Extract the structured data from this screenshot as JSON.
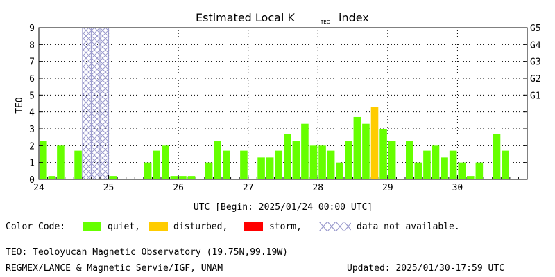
{
  "chart_data": {
    "type": "bar",
    "title": "Estimated Local K",
    "title_subscript": "TEO",
    "title_suffix": "index",
    "ylabel": "TEO",
    "xlabel": "UTC [Begin: 2025/01/24 00:00 UTC]",
    "ylim": [
      0,
      9
    ],
    "xlim": [
      24,
      31
    ],
    "x_ticks": [
      "24",
      "25",
      "26",
      "27",
      "28",
      "29",
      "30"
    ],
    "y_ticks": [
      "0",
      "1",
      "2",
      "3",
      "4",
      "5",
      "6",
      "7",
      "8",
      "9"
    ],
    "right_ticks": [
      {
        "label": "G1",
        "value": 5
      },
      {
        "label": "G2",
        "value": 6
      },
      {
        "label": "G3",
        "value": 7
      },
      {
        "label": "G4",
        "value": 8
      },
      {
        "label": "G5",
        "value": 9
      }
    ],
    "bar_interval_hours": 3,
    "grid": true,
    "colors": {
      "quiet": "#66ff00",
      "disturbed": "#ffcc00",
      "storm": "#ff0000",
      "unavailable": "#9999cc"
    },
    "unavailable_ranges": [
      [
        24.625,
        25.0
      ]
    ],
    "values": [
      2.3,
      0.2,
      2.0,
      null,
      1.7,
      null,
      null,
      null,
      0.2,
      null,
      null,
      null,
      1.0,
      1.7,
      2.0,
      0.2,
      0.2,
      0.2,
      null,
      1.0,
      2.3,
      1.7,
      null,
      1.7,
      null,
      1.3,
      1.3,
      1.7,
      2.7,
      2.3,
      3.3,
      2.0,
      2.0,
      1.7,
      1.0,
      2.3,
      3.7,
      3.3,
      4.3,
      3.0,
      2.3,
      null,
      2.3,
      1.0,
      1.7,
      2.0,
      1.3,
      1.7,
      1.0,
      0.2,
      1.0,
      null,
      2.7,
      1.7,
      null,
      null
    ],
    "statuses": [
      "quiet",
      "quiet",
      "quiet",
      null,
      "quiet",
      null,
      null,
      null,
      "quiet",
      null,
      null,
      null,
      "quiet",
      "quiet",
      "quiet",
      "quiet",
      "quiet",
      "quiet",
      null,
      "quiet",
      "quiet",
      "quiet",
      null,
      "quiet",
      null,
      "quiet",
      "quiet",
      "quiet",
      "quiet",
      "quiet",
      "quiet",
      "quiet",
      "quiet",
      "quiet",
      "quiet",
      "quiet",
      "quiet",
      "quiet",
      "disturbed",
      "quiet",
      "quiet",
      null,
      "quiet",
      "quiet",
      "quiet",
      "quiet",
      "quiet",
      "quiet",
      "quiet",
      "quiet",
      "quiet",
      null,
      "quiet",
      "quiet",
      null,
      null
    ]
  },
  "legend": {
    "label": "Color Code:",
    "quiet": "quiet,",
    "disturbed": "disturbed,",
    "storm": "storm,",
    "unavailable": "data not available."
  },
  "footer": {
    "observatory": "TEO: Teoloyucan Magnetic Observatory (19.75N,99.19W)",
    "credit": "REGMEX/LANCE & Magnetic Servie/IGF, UNAM",
    "updated": "Updated: 2025/01/30-17:59 UTC"
  }
}
